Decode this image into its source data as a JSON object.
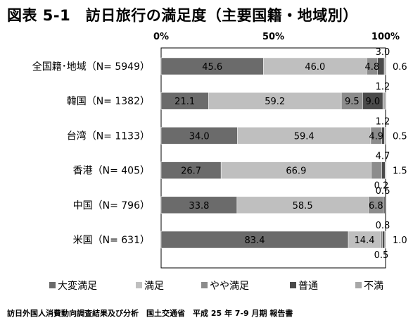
{
  "title": "図表 5-1　訪日旅行の満足度（主要国籍・地域別）",
  "footer": "訪日外国人消費動向調査結果及び分析　国土交通省　平成 25 年 7-9 月期 報告書",
  "chart_data": {
    "type": "bar",
    "stacked": true,
    "orientation": "horizontal",
    "xlim": [
      0,
      100
    ],
    "x_ticks": [
      "0%",
      "50%",
      "100%"
    ],
    "grid": false,
    "legend_position": "bottom",
    "categories": [
      "全国籍･地域（N= 5949）",
      "韓国（N= 1382）",
      "台湾（N= 1133）",
      "香港（N= 405）",
      "中国（N= 796）",
      "米国（N= 631）"
    ],
    "series": [
      {
        "name": "大変満足",
        "color": "#6b6b6b",
        "values": [
          45.6,
          21.1,
          34.0,
          26.7,
          33.8,
          83.4
        ],
        "labels": [
          "45.6",
          "21.1",
          "34.0",
          "26.7",
          "33.8",
          "83.4"
        ]
      },
      {
        "name": "満足",
        "color": "#bfbfbf",
        "values": [
          46.0,
          59.2,
          59.4,
          66.9,
          58.5,
          14.4
        ],
        "labels": [
          "46.0",
          "59.2",
          "59.4",
          "66.9",
          "58.5",
          "14.4"
        ]
      },
      {
        "name": "やや満足",
        "color": "#8c8c8c",
        "values": [
          4.8,
          9.5,
          4.9,
          4.7,
          6.8,
          0.8
        ],
        "labels": [
          "4.8",
          "9.5",
          "4.9",
          "4.7",
          "6.8",
          "0.8"
        ]
      },
      {
        "name": "普通",
        "color": "#4a4a4a",
        "values": [
          3.0,
          9.0,
          1.2,
          1.5,
          0.6,
          1.0
        ],
        "labels": [
          "3.0",
          "9.0",
          "1.2",
          "1.5",
          "0.6",
          "1.0"
        ]
      },
      {
        "name": "不満",
        "color": "#a8a8a8",
        "values": [
          0.6,
          1.2,
          0.5,
          0.2,
          0.0,
          0.5
        ],
        "labels": [
          "0.6",
          "1.2",
          "0.5",
          "0.2",
          "",
          "0.5"
        ]
      }
    ]
  }
}
